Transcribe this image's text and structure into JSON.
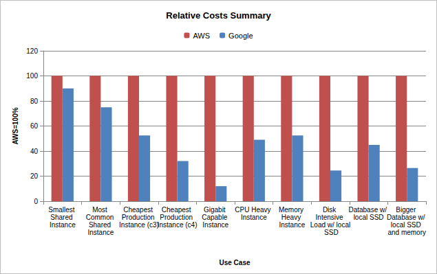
{
  "chart_data": {
    "type": "bar",
    "title": "Relative Costs Summary",
    "x_label": "Use Case",
    "y_label": "AWS=100%",
    "categories": [
      "Smallest Shared Instance",
      "Most Common Shared Instance",
      "Cheapest Production Instance (c3)",
      "Cheapest Production Instance (c4)",
      "Gigabit Capable Instance",
      "CPU Heavy Instance",
      "Memory Heavy Instance",
      "Disk Intensive Load w/ local SSD",
      "Database w/ local SSD",
      "Bigger Database w/ local SSD and memory"
    ],
    "series": [
      {
        "name": "AWS",
        "color": "#C0504D",
        "values": [
          100,
          100,
          100,
          100,
          100,
          100,
          100,
          100,
          100,
          100
        ]
      },
      {
        "name": "Google",
        "color": "#4F81BD",
        "values": [
          90,
          75,
          52.5,
          32,
          12,
          49,
          52.5,
          24.5,
          45,
          26.5
        ]
      }
    ],
    "ylim": [
      0,
      120
    ],
    "yticks": [
      0,
      20,
      40,
      60,
      80,
      100,
      120
    ],
    "grid": true,
    "legend": "top"
  }
}
